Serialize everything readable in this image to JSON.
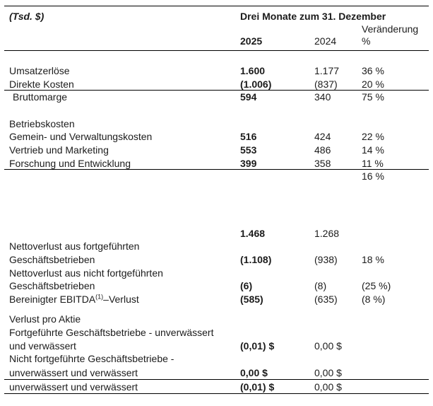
{
  "colors": {
    "background": "#ffffff",
    "text": "#1b1b1b",
    "rule_lines": "#000000"
  },
  "header": {
    "unit_label": "(Tsd. $)",
    "period_title": "Drei Monate zum 31. Dezember",
    "change_label": "Veränderung",
    "change_unit": "%",
    "col_2025": "2025",
    "col_2024": "2024"
  },
  "rows": [
    {
      "label": "Umsatzerlöse",
      "v2025": "1.600",
      "v2024": "1.177",
      "change": "36 %"
    },
    {
      "label": "Direkte Kosten",
      "v2025": "(1.006)",
      "v2024": "(837)",
      "change": "20 %",
      "border_bottom": true
    },
    {
      "label": "Bruttomarge",
      "indent": true,
      "v2025": "594",
      "v2024": "340",
      "change": "75 %"
    },
    {
      "spacer": 19
    },
    {
      "label": "Betriebskosten"
    },
    {
      "label": "Gemein- und Verwaltungskosten",
      "v2025": "516",
      "v2024": "424",
      "change": "22 %"
    },
    {
      "label": "Vertrieb und Marketing",
      "v2025": "553",
      "v2024": "486",
      "change": "14 %"
    },
    {
      "label": "Forschung und Entwicklung",
      "v2025": "399",
      "v2024": "358",
      "change": "11 %",
      "border_bottom": true
    },
    {
      "change": "16 %"
    },
    {
      "spacer": 62
    },
    {
      "v2025": "1.468",
      "v2024": "1.268"
    },
    {
      "label": "Nettoverlust aus fortgeführten"
    },
    {
      "label": "Geschäftsbetrieben",
      "v2025": "(1.108)",
      "v2024": "(938)",
      "change": "18 %"
    },
    {
      "label": "Nettoverlust aus nicht fortgeführten"
    },
    {
      "label": "Geschäftsbetrieben",
      "v2025": "(6)",
      "v2024": "(8)",
      "change": "(25 %)"
    },
    {
      "label": "Bereinigter EBITDA",
      "label_sup": "(1)",
      "label_after": "–Verlust",
      "v2025": "(585)",
      "v2024": "(635)",
      "change": "(8 %)"
    },
    {
      "spacer": 10
    },
    {
      "label": "Verlust pro Aktie"
    },
    {
      "label": "Fortgeführte Geschäftsbetriebe - unverwässert"
    },
    {
      "label": "und verwässert",
      "v2025": "(0,01) $",
      "v2024": "0,00 $"
    },
    {
      "label": "Nicht fortgeführte Geschäftsbetriebe -"
    },
    {
      "label": "unverwässert und verwässert",
      "v2025": "0,00 $",
      "v2024": "0,00 $",
      "border_bottom": true,
      "height": 20
    },
    {
      "label": "unverwässert und verwässert",
      "v2025": "(0,01) $",
      "v2024": "0,00 $",
      "border_bottom": true,
      "height": 20
    }
  ]
}
